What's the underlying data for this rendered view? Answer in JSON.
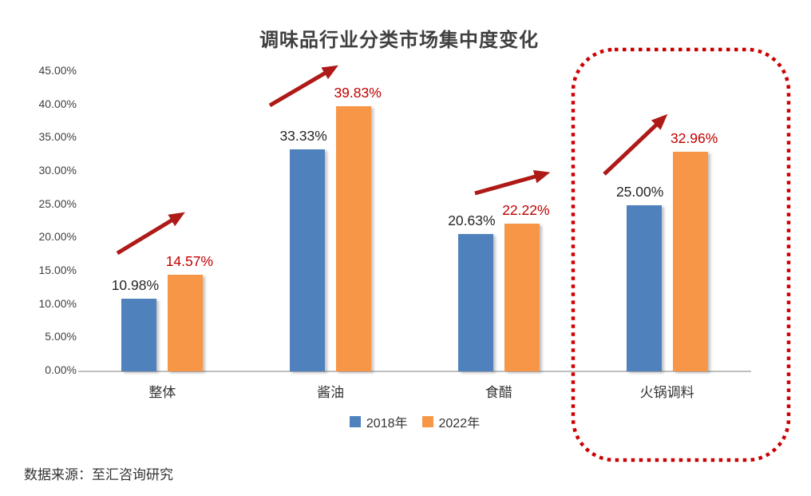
{
  "chart_data": {
    "type": "bar",
    "title": "调味品行业分类市场集中度变化",
    "categories": [
      "整体",
      "酱油",
      "食醋",
      "火锅调料"
    ],
    "series": [
      {
        "name": "2018年",
        "color": "#4F81BD",
        "values": [
          10.98,
          33.33,
          20.63,
          25.0
        ],
        "labels": [
          "10.98%",
          "33.33%",
          "20.63%",
          "25.00%"
        ],
        "label_color": "#262626"
      },
      {
        "name": "2022年",
        "color": "#F79646",
        "values": [
          14.57,
          39.83,
          22.22,
          32.96
        ],
        "labels": [
          "14.57%",
          "39.83%",
          "22.22%",
          "32.96%"
        ],
        "label_color": "#C00000"
      }
    ],
    "y_axis": {
      "min": 0,
      "max": 45,
      "step": 5,
      "tick_labels": [
        "0.00%",
        "5.00%",
        "10.00%",
        "15.00%",
        "20.00%",
        "25.00%",
        "30.00%",
        "35.00%",
        "40.00%",
        "45.00%"
      ]
    },
    "legend_position": "bottom",
    "grid": false,
    "annotations": {
      "trend_arrows": true,
      "arrow_color": "#AE1A17",
      "highlight": {
        "category": "火锅调料",
        "style": "red-dotted-rounded-rect",
        "color": "#CC0000"
      }
    }
  },
  "source_note": "数据来源：至汇咨询研究"
}
